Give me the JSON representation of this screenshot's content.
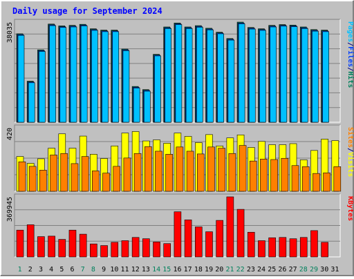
{
  "colors": {
    "background": "#c0c0c0",
    "panel": "#c0c0c0",
    "hits": "#00805c",
    "files": "#0040ff",
    "pages": "#00c0ff",
    "visits": "#ffff00",
    "sites": "#ff8000",
    "kbytes": "#ff0000",
    "title": "#0000ff",
    "weekday_label": "#000080",
    "weekend_label": "#00805c"
  },
  "chart_data": [
    {
      "type": "bar",
      "title": "Daily usage for September 2024",
      "days": [
        "1",
        "2",
        "3",
        "4",
        "5",
        "6",
        "7",
        "8",
        "9",
        "10",
        "11",
        "12",
        "13",
        "14",
        "15",
        "16",
        "17",
        "18",
        "19",
        "20",
        "21",
        "22",
        "23",
        "24",
        "25",
        "26",
        "27",
        "28",
        "29",
        "30",
        "31"
      ],
      "weekend_days": [
        "1",
        "7",
        "8",
        "14",
        "15",
        "21",
        "22",
        "28",
        "29"
      ],
      "ylabel_parts": [
        {
          "text": "Pages",
          "color_key": "pages"
        },
        {
          "text": "/",
          "color_key": "weekday_label"
        },
        {
          "text": "Files",
          "color_key": "files"
        },
        {
          "text": "/",
          "color_key": "weekday_label"
        },
        {
          "text": "Hits",
          "color_key": "hits"
        }
      ],
      "ymax_label": "38035",
      "ylim": [
        0,
        38035
      ],
      "series": [
        {
          "name": "Hits",
          "color_key": "hits",
          "values": [
            33600,
            15600,
            27500,
            37300,
            36600,
            36800,
            37200,
            35500,
            35000,
            35000,
            27800,
            13600,
            12400,
            25800,
            36200,
            37700,
            36200,
            36700,
            35700,
            34200,
            31800,
            38035,
            36000,
            35500,
            36800,
            37100,
            36900,
            36200,
            35200,
            35000,
            0
          ]
        },
        {
          "name": "Files",
          "color_key": "files",
          "values": [
            33300,
            15300,
            27200,
            37000,
            36300,
            36500,
            36900,
            35200,
            34700,
            34700,
            27500,
            13300,
            12100,
            25500,
            35900,
            37400,
            35900,
            36400,
            35400,
            33900,
            31500,
            37700,
            35700,
            35200,
            36500,
            36800,
            36600,
            35900,
            34900,
            34700,
            0
          ]
        },
        {
          "name": "Pages",
          "color_key": "pages",
          "values": [
            33000,
            15000,
            26900,
            36700,
            36000,
            36200,
            36600,
            34900,
            34400,
            34400,
            27200,
            13000,
            11800,
            25200,
            35600,
            37100,
            35600,
            36100,
            35100,
            33600,
            31200,
            37400,
            35400,
            34900,
            36200,
            36500,
            36300,
            35600,
            34600,
            34400,
            0
          ]
        }
      ]
    },
    {
      "type": "bar",
      "ylabel_parts": [
        {
          "text": "Sites",
          "color_key": "sites"
        },
        {
          "text": "/",
          "color_key": "weekday_label"
        },
        {
          "text": "Visits",
          "color_key": "visits"
        }
      ],
      "ymax_label": "420",
      "ylim": [
        0,
        420
      ],
      "series": [
        {
          "name": "Visits",
          "color_key": "visits",
          "values": [
            230,
            185,
            215,
            285,
            380,
            285,
            365,
            245,
            217,
            300,
            385,
            395,
            333,
            340,
            318,
            385,
            363,
            322,
            375,
            300,
            353,
            373,
            290,
            330,
            308,
            308,
            315,
            208,
            270,
            345,
            335
          ]
        },
        {
          "name": "Sites",
          "color_key": "sites",
          "values": [
            195,
            165,
            140,
            240,
            250,
            183,
            230,
            135,
            120,
            165,
            220,
            250,
            295,
            265,
            245,
            293,
            265,
            247,
            293,
            285,
            250,
            303,
            200,
            213,
            210,
            218,
            170,
            163,
            118,
            122,
            163
          ]
        }
      ]
    },
    {
      "type": "bar",
      "ylabel_parts": [
        {
          "text": "KBytes",
          "color_key": "kbytes"
        }
      ],
      "ymax_label": "369945",
      "ylim": [
        0,
        369945
      ],
      "series": [
        {
          "name": "KBytes",
          "color_key": "kbytes",
          "values": [
            165000,
            198000,
            125000,
            128000,
            108000,
            165000,
            140000,
            80000,
            70000,
            90000,
            100000,
            120000,
            112000,
            92000,
            82000,
            278000,
            228000,
            185000,
            155000,
            225000,
            369945,
            293000,
            152000,
            100000,
            118000,
            120000,
            112000,
            120000,
            162000,
            90000,
            0
          ]
        }
      ]
    }
  ]
}
